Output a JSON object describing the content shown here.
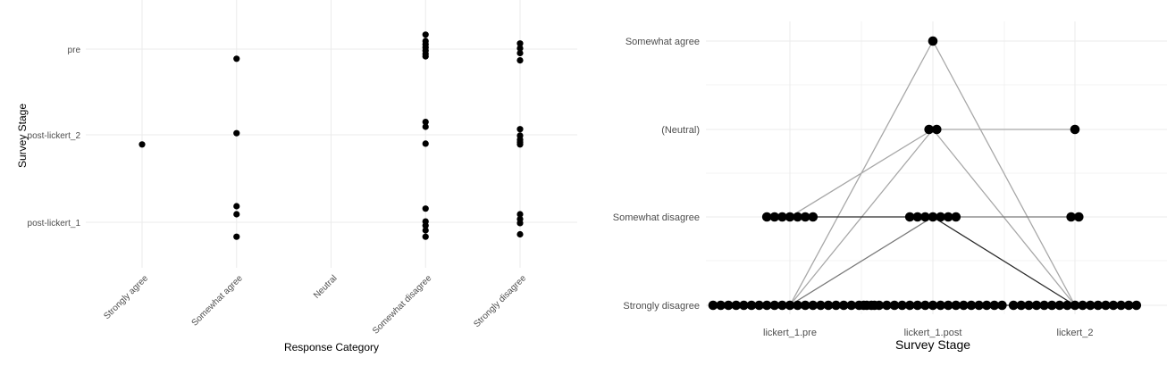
{
  "chart_data": [
    {
      "type": "scatter",
      "title": "",
      "xlabel": "Response Category",
      "ylabel": "Survey Stage",
      "categories": [
        "Strongly agree",
        "Somewhat agree",
        "Neutral",
        "Somewhat disagree",
        "Strongly disagree"
      ],
      "y_categories": [
        "post-lickert_1",
        "post-lickert_2",
        "pre"
      ],
      "grid": true,
      "points": [
        {
          "x": "Strongly agree",
          "y": "post-lickert_2",
          "jitter": -0.12
        },
        {
          "x": "Somewhat agree",
          "y": "pre",
          "jitter": -0.12
        },
        {
          "x": "Somewhat agree",
          "y": "post-lickert_2",
          "jitter": 0.02
        },
        {
          "x": "Somewhat agree",
          "y": "post-lickert_1",
          "jitter": 0.2
        },
        {
          "x": "Somewhat agree",
          "y": "post-lickert_1",
          "jitter": 0.1
        },
        {
          "x": "Somewhat agree",
          "y": "post-lickert_1",
          "jitter": -0.18
        },
        {
          "x": "Somewhat disagree",
          "y": "pre",
          "jitter": 0.18
        },
        {
          "x": "Somewhat disagree",
          "y": "pre",
          "jitter": 0.1
        },
        {
          "x": "Somewhat disagree",
          "y": "pre",
          "jitter": 0.06
        },
        {
          "x": "Somewhat disagree",
          "y": "pre",
          "jitter": 0.02
        },
        {
          "x": "Somewhat disagree",
          "y": "pre",
          "jitter": -0.02
        },
        {
          "x": "Somewhat disagree",
          "y": "pre",
          "jitter": -0.06
        },
        {
          "x": "Somewhat disagree",
          "y": "pre",
          "jitter": -0.09
        },
        {
          "x": "Somewhat disagree",
          "y": "post-lickert_2",
          "jitter": 0.16
        },
        {
          "x": "Somewhat disagree",
          "y": "post-lickert_2",
          "jitter": 0.1
        },
        {
          "x": "Somewhat disagree",
          "y": "post-lickert_2",
          "jitter": -0.11
        },
        {
          "x": "Somewhat disagree",
          "y": "post-lickert_1",
          "jitter": 0.17
        },
        {
          "x": "Somewhat disagree",
          "y": "post-lickert_1",
          "jitter": 0.01
        },
        {
          "x": "Somewhat disagree",
          "y": "post-lickert_1",
          "jitter": -0.04
        },
        {
          "x": "Somewhat disagree",
          "y": "post-lickert_1",
          "jitter": -0.1
        },
        {
          "x": "Somewhat disagree",
          "y": "post-lickert_1",
          "jitter": -0.18
        },
        {
          "x": "Strongly disagree",
          "y": "pre",
          "jitter": 0.07
        },
        {
          "x": "Strongly disagree",
          "y": "pre",
          "jitter": 0.01
        },
        {
          "x": "Strongly disagree",
          "y": "pre",
          "jitter": -0.05
        },
        {
          "x": "Strongly disagree",
          "y": "pre",
          "jitter": -0.14
        },
        {
          "x": "Strongly disagree",
          "y": "post-lickert_2",
          "jitter": 0.07
        },
        {
          "x": "Strongly disagree",
          "y": "post-lickert_2",
          "jitter": -0.01
        },
        {
          "x": "Strongly disagree",
          "y": "post-lickert_2",
          "jitter": -0.06
        },
        {
          "x": "Strongly disagree",
          "y": "post-lickert_2",
          "jitter": -0.09
        },
        {
          "x": "Strongly disagree",
          "y": "post-lickert_2",
          "jitter": -0.12
        },
        {
          "x": "Strongly disagree",
          "y": "post-lickert_1",
          "jitter": 0.1
        },
        {
          "x": "Strongly disagree",
          "y": "post-lickert_1",
          "jitter": 0.04
        },
        {
          "x": "Strongly disagree",
          "y": "post-lickert_1",
          "jitter": -0.01
        },
        {
          "x": "Strongly disagree",
          "y": "post-lickert_1",
          "jitter": -0.15
        }
      ]
    },
    {
      "type": "scatter",
      "title": "",
      "xlabel": "Survey Stage",
      "ylabel": "",
      "categories": [
        "lickert_1.pre",
        "lickert_1.post",
        "lickert_2"
      ],
      "y_categories": [
        "Strongly disagree",
        "Somewhat disagree",
        "(Neutral)",
        "Somewhat agree"
      ],
      "grid": true,
      "points": [
        {
          "x": "lickert_1.pre",
          "y": "Strongly disagree",
          "count": 23
        },
        {
          "x": "lickert_1.pre",
          "y": "Somewhat disagree",
          "count": 7
        },
        {
          "x": "lickert_1.post",
          "y": "Strongly disagree",
          "count": 19
        },
        {
          "x": "lickert_1.post",
          "y": "Somewhat disagree",
          "count": 7
        },
        {
          "x": "lickert_1.post",
          "y": "(Neutral)",
          "count": 2
        },
        {
          "x": "lickert_1.post",
          "y": "Somewhat agree",
          "count": 1
        },
        {
          "x": "lickert_2",
          "y": "Strongly disagree",
          "count": 17
        },
        {
          "x": "lickert_2",
          "y": "Somewhat disagree",
          "count": 2
        },
        {
          "x": "lickert_2",
          "y": "(Neutral)",
          "count": 1
        }
      ],
      "links": [
        {
          "from": [
            "lickert_1.pre",
            "Strongly disagree"
          ],
          "to": [
            "lickert_1.post",
            "Somewhat agree"
          ],
          "shade": "light"
        },
        {
          "from": [
            "lickert_1.pre",
            "Strongly disagree"
          ],
          "to": [
            "lickert_1.post",
            "(Neutral)"
          ],
          "shade": "light"
        },
        {
          "from": [
            "lickert_1.pre",
            "Strongly disagree"
          ],
          "to": [
            "lickert_1.post",
            "Somewhat disagree"
          ],
          "shade": "mid"
        },
        {
          "from": [
            "lickert_1.pre",
            "Strongly disagree"
          ],
          "to": [
            "lickert_1.post",
            "Strongly disagree"
          ],
          "shade": "dark"
        },
        {
          "from": [
            "lickert_1.pre",
            "Somewhat disagree"
          ],
          "to": [
            "lickert_1.post",
            "(Neutral)"
          ],
          "shade": "light"
        },
        {
          "from": [
            "lickert_1.pre",
            "Somewhat disagree"
          ],
          "to": [
            "lickert_1.post",
            "Somewhat disagree"
          ],
          "shade": "dark"
        },
        {
          "from": [
            "lickert_1.post",
            "Somewhat agree"
          ],
          "to": [
            "lickert_2",
            "Strongly disagree"
          ],
          "shade": "light"
        },
        {
          "from": [
            "lickert_1.post",
            "(Neutral)"
          ],
          "to": [
            "lickert_2",
            "(Neutral)"
          ],
          "shade": "light"
        },
        {
          "from": [
            "lickert_1.post",
            "(Neutral)"
          ],
          "to": [
            "lickert_2",
            "Strongly disagree"
          ],
          "shade": "light"
        },
        {
          "from": [
            "lickert_1.post",
            "Somewhat disagree"
          ],
          "to": [
            "lickert_2",
            "Somewhat disagree"
          ],
          "shade": "mid"
        },
        {
          "from": [
            "lickert_1.post",
            "Somewhat disagree"
          ],
          "to": [
            "lickert_2",
            "Strongly disagree"
          ],
          "shade": "dark"
        },
        {
          "from": [
            "lickert_1.post",
            "Strongly disagree"
          ],
          "to": [
            "lickert_2",
            "Strongly disagree"
          ],
          "shade": "dark"
        }
      ]
    }
  ],
  "colors": {
    "point": "#000000",
    "grid": "#ebebeb",
    "link_light": "#a8a8a8",
    "link_mid": "#7a7a7a",
    "link_dark": "#2b2b2b"
  }
}
